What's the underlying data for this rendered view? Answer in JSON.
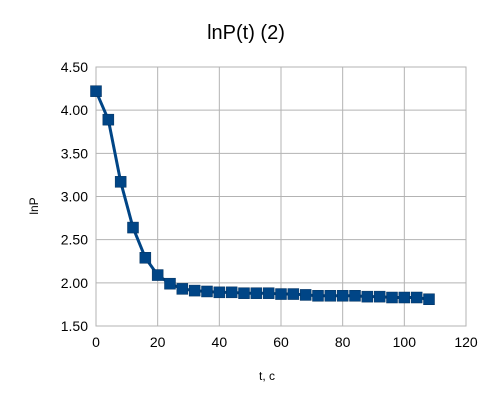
{
  "chart_data": {
    "type": "line",
    "title": "lnP(t) (2)",
    "xlabel": "t, c",
    "ylabel": "lnP",
    "xlim": [
      0,
      120
    ],
    "ylim": [
      1.5,
      4.5
    ],
    "x_ticks": [
      "0",
      "20",
      "40",
      "60",
      "80",
      "100",
      "120"
    ],
    "y_ticks": [
      "1.50",
      "2.00",
      "2.50",
      "3.00",
      "3.50",
      "4.00",
      "4.50"
    ],
    "grid": true,
    "legend": "none",
    "series": [
      {
        "color": "#004586",
        "marker": "square",
        "x": [
          0,
          4,
          8,
          12,
          16,
          20,
          24,
          28,
          32,
          36,
          40,
          44,
          48,
          52,
          56,
          60,
          64,
          68,
          72,
          76,
          80,
          84,
          88,
          92,
          96,
          100,
          104,
          108
        ],
        "y": [
          4.22,
          3.89,
          3.17,
          2.64,
          2.29,
          2.09,
          1.99,
          1.93,
          1.91,
          1.9,
          1.89,
          1.89,
          1.88,
          1.88,
          1.88,
          1.87,
          1.87,
          1.86,
          1.85,
          1.85,
          1.85,
          1.85,
          1.84,
          1.84,
          1.83,
          1.83,
          1.83,
          1.81
        ]
      }
    ]
  }
}
